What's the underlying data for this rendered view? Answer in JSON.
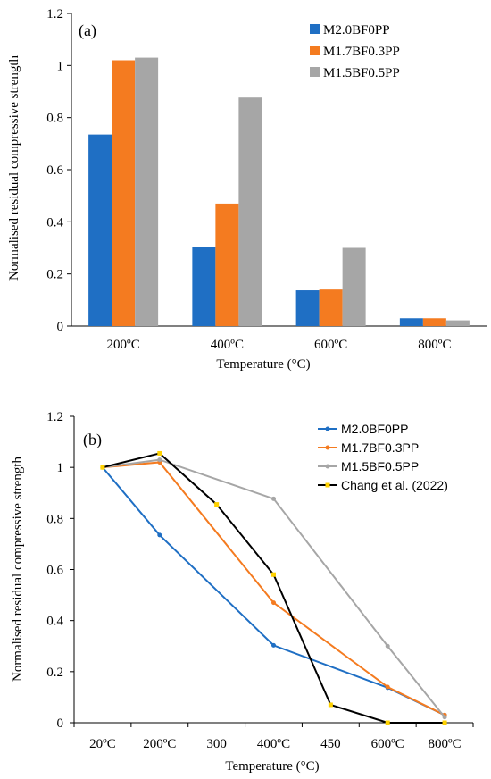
{
  "chart_data": [
    {
      "type": "bar",
      "panel_label": "(a)",
      "categories": [
        "200ºC",
        "400ºC",
        "600ºC",
        "800ºC"
      ],
      "series": [
        {
          "name": "M2.0BF0PP",
          "color": "#1f6fc4",
          "values": [
            0.735,
            0.303,
            0.137,
            0.03
          ]
        },
        {
          "name": "M1.7BF0.3PP",
          "color": "#f47b20",
          "values": [
            1.02,
            0.47,
            0.14,
            0.03
          ]
        },
        {
          "name": "M1.5BF0.5PP",
          "color": "#a6a6a6",
          "values": [
            1.03,
            0.877,
            0.3,
            0.022
          ]
        }
      ],
      "xlabel": "Temperature (°C)",
      "ylabel": "Normalised residual compressive strength",
      "ylim": [
        0,
        1.2
      ],
      "yticks": [
        "0",
        "0.2",
        "0.4",
        "0.6",
        "0.8",
        "1",
        "1.2"
      ],
      "grid": false,
      "legend_position": "top-right"
    },
    {
      "type": "line",
      "panel_label": "(b)",
      "categories": [
        "20ºC",
        "200ºC",
        "300",
        "400ºC",
        "450",
        "600ºC",
        "800ºC"
      ],
      "series": [
        {
          "name": "M2.0BF0PP",
          "color": "#1f6fc4",
          "marker_color": "#1f6fc4",
          "x": [
            0,
            1,
            3,
            5,
            6
          ],
          "values": [
            1.0,
            0.735,
            0.303,
            0.137,
            0.03
          ]
        },
        {
          "name": "M1.7BF0.3PP",
          "color": "#f47b20",
          "marker_color": "#f47b20",
          "x": [
            0,
            1,
            3,
            5,
            6
          ],
          "values": [
            1.0,
            1.02,
            0.47,
            0.14,
            0.03
          ]
        },
        {
          "name": "M1.5BF0.5PP",
          "color": "#a6a6a6",
          "marker_color": "#a6a6a6",
          "x": [
            0,
            1,
            3,
            5,
            6
          ],
          "values": [
            1.0,
            1.03,
            0.877,
            0.3,
            0.022
          ]
        },
        {
          "name": "Chang et al. (2022)",
          "color": "#000000",
          "marker_color": "#ffd200",
          "x": [
            0,
            1,
            2,
            3,
            4,
            5,
            6
          ],
          "values": [
            1.0,
            1.055,
            0.855,
            0.58,
            0.07,
            0.0,
            0.0
          ]
        }
      ],
      "xlabel": "Temperature (°C)",
      "ylabel": "Normalised residual compressive strength",
      "ylim": [
        0,
        1.2
      ],
      "yticks": [
        "0",
        "0.2",
        "0.4",
        "0.6",
        "0.8",
        "1",
        "1.2"
      ],
      "grid": false,
      "legend_position": "top-right"
    }
  ]
}
